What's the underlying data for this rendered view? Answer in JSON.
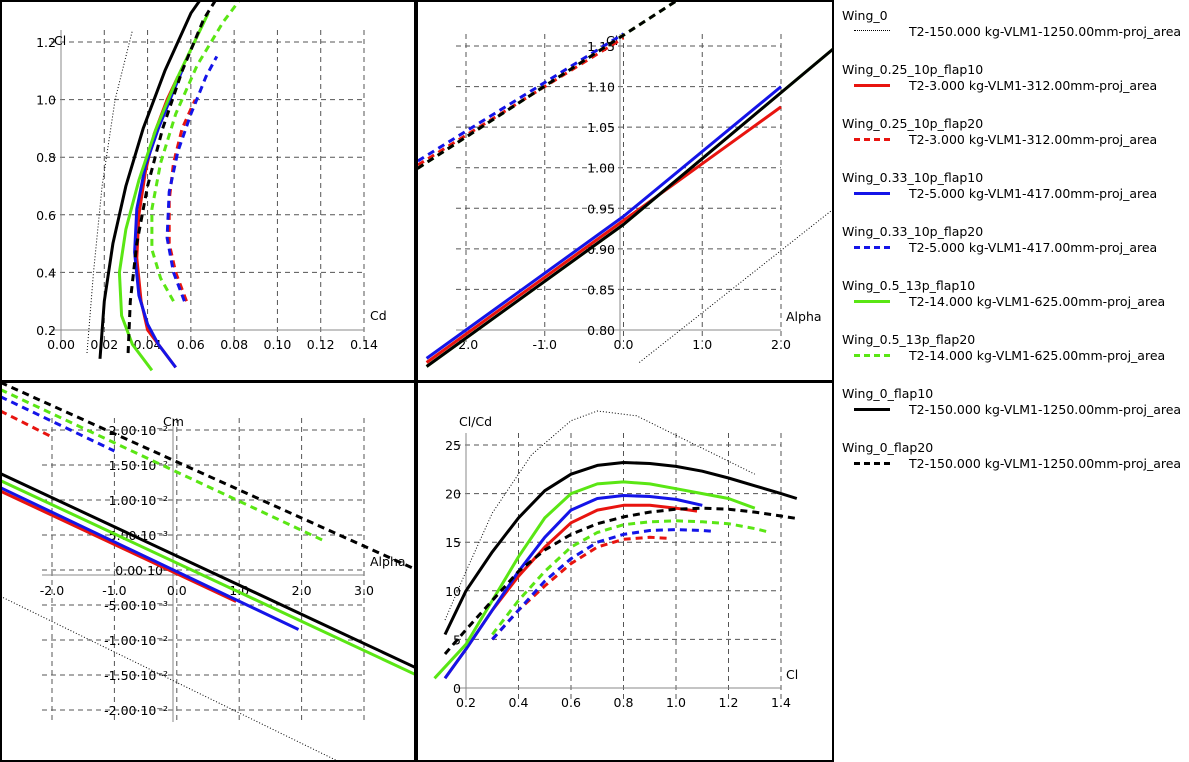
{
  "legend": {
    "entries": [
      {
        "name": "Wing_0",
        "desc": "T2-150.000 kg-VLM1-1250.00mm-proj_area",
        "color": "#000000",
        "style": "dotted"
      },
      {
        "name": "Wing_0.25_10p_flap10",
        "desc": "T2-3.000 kg-VLM1-312.00mm-proj_area",
        "color": "#e8140f",
        "style": "solid"
      },
      {
        "name": "Wing_0.25_10p_flap20",
        "desc": "T2-3.000 kg-VLM1-312.00mm-proj_area",
        "color": "#e8140f",
        "style": "dashed"
      },
      {
        "name": "Wing_0.33_10p_flap10",
        "desc": "T2-5.000 kg-VLM1-417.00mm-proj_area",
        "color": "#1414e8",
        "style": "solid"
      },
      {
        "name": "Wing_0.33_10p_flap20",
        "desc": "T2-5.000 kg-VLM1-417.00mm-proj_area",
        "color": "#1414e8",
        "style": "dashed"
      },
      {
        "name": "Wing_0.5_13p_flap10",
        "desc": "T2-14.000 kg-VLM1-625.00mm-proj_area",
        "color": "#5ae614",
        "style": "solid"
      },
      {
        "name": "Wing_0.5_13p_flap20",
        "desc": "T2-14.000 kg-VLM1-625.00mm-proj_area",
        "color": "#5ae614",
        "style": "dashed"
      },
      {
        "name": "Wing_0_flap10",
        "desc": "T2-150.000 kg-VLM1-1250.00mm-proj_area",
        "color": "#000000",
        "style": "solid"
      },
      {
        "name": "Wing_0_flap20",
        "desc": "T2-150.000 kg-VLM1-1250.00mm-proj_area",
        "color": "#000000",
        "style": "dashed"
      }
    ]
  },
  "chart_data": [
    {
      "type": "line",
      "xlabel": "Cd",
      "ylabel": "Cl",
      "xlim": [
        0.0,
        0.14
      ],
      "ylim": [
        0.07,
        1.35
      ],
      "xticks": [
        0.0,
        0.02,
        0.04,
        0.06,
        0.08,
        0.1,
        0.12,
        0.14
      ],
      "xtick_labels": [
        "0.00",
        "0.02",
        "0.04",
        "0.06",
        "0.08",
        "0.10",
        "0.12",
        "0.14"
      ],
      "yticks": [
        0.2,
        0.4,
        0.6,
        0.8,
        1.0,
        1.2
      ],
      "ytick_labels": [
        "0.2",
        "0.4",
        "0.6",
        "0.8",
        "1.0",
        "1.2"
      ],
      "grid": true,
      "series": [
        {
          "name": "Wing_0",
          "x": [
            0.012,
            0.015,
            0.019,
            0.025,
            0.033
          ],
          "y": [
            0.12,
            0.4,
            0.7,
            1.0,
            1.24
          ]
        },
        {
          "name": "Wing_0.25_10p_flap10",
          "x": [
            0.053,
            0.046,
            0.04,
            0.037,
            0.035,
            0.036,
            0.039,
            0.043,
            0.049,
            0.054
          ],
          "y": [
            0.07,
            0.14,
            0.2,
            0.3,
            0.45,
            0.6,
            0.75,
            0.88,
            1.0,
            1.08
          ]
        },
        {
          "name": "Wing_0.25_10p_flap20",
          "x": [
            0.058,
            0.053,
            0.05,
            0.05,
            0.052,
            0.056,
            0.062
          ],
          "y": [
            0.3,
            0.4,
            0.5,
            0.65,
            0.78,
            0.9,
            1.0
          ]
        },
        {
          "name": "Wing_0.33_10p_flap10",
          "x": [
            0.053,
            0.045,
            0.04,
            0.036,
            0.034,
            0.035,
            0.039,
            0.045,
            0.052,
            0.057
          ],
          "y": [
            0.07,
            0.15,
            0.22,
            0.32,
            0.47,
            0.62,
            0.77,
            0.9,
            1.03,
            1.12
          ]
        },
        {
          "name": "Wing_0.33_10p_flap20",
          "x": [
            0.057,
            0.052,
            0.049,
            0.05,
            0.054,
            0.06,
            0.067,
            0.072
          ],
          "y": [
            0.3,
            0.4,
            0.52,
            0.68,
            0.82,
            0.95,
            1.08,
            1.15
          ]
        },
        {
          "name": "Wing_0.5_13p_flap10",
          "x": [
            0.042,
            0.033,
            0.028,
            0.027,
            0.03,
            0.036,
            0.044,
            0.054,
            0.068
          ],
          "y": [
            0.06,
            0.15,
            0.25,
            0.4,
            0.55,
            0.72,
            0.9,
            1.08,
            1.3
          ]
        },
        {
          "name": "Wing_0.5_13p_flap20",
          "x": [
            0.052,
            0.046,
            0.042,
            0.042,
            0.046,
            0.053,
            0.063,
            0.075,
            0.085
          ],
          "y": [
            0.3,
            0.38,
            0.48,
            0.62,
            0.78,
            0.95,
            1.12,
            1.27,
            1.37
          ]
        },
        {
          "name": "Wing_0_flap10",
          "x": [
            0.018,
            0.02,
            0.024,
            0.03,
            0.038,
            0.048,
            0.06,
            0.074
          ],
          "y": [
            0.1,
            0.3,
            0.5,
            0.7,
            0.9,
            1.1,
            1.3,
            1.45
          ]
        },
        {
          "name": "Wing_0_flap20",
          "x": [
            0.031,
            0.032,
            0.035,
            0.04,
            0.047,
            0.056,
            0.066,
            0.076,
            0.085
          ],
          "y": [
            0.12,
            0.3,
            0.5,
            0.7,
            0.9,
            1.1,
            1.28,
            1.4,
            1.47
          ]
        }
      ]
    },
    {
      "type": "line",
      "xlabel": "Alpha",
      "ylabel": "Cl",
      "xlim": [
        -3.05,
        3.2
      ],
      "ylim": [
        0.76,
        1.2
      ],
      "xticks": [
        -2.0,
        -1.0,
        0.0,
        1.0,
        2.0
      ],
      "xtick_labels": [
        "-2.0",
        "-1.0",
        "0.0",
        "1.0",
        "2.0"
      ],
      "yticks": [
        0.8,
        0.85,
        0.9,
        0.95,
        1.0,
        1.05,
        1.1,
        1.15
      ],
      "ytick_labels": [
        "0.80",
        "0.85",
        "0.90",
        "0.95",
        "1.00",
        "1.05",
        "1.10",
        "1.15"
      ],
      "grid": true,
      "series": [
        {
          "name": "Wing_0",
          "x": [
            0.2,
            3.2
          ],
          "y": [
            0.76,
            0.99
          ]
        },
        {
          "name": "Wing_0.25_10p_flap10",
          "x": [
            -2.5,
            0.0,
            2.0
          ],
          "y": [
            0.76,
            0.935,
            1.075
          ]
        },
        {
          "name": "Wing_0.25_10p_flap20",
          "x": [
            -3.0,
            0.0
          ],
          "y": [
            0.98,
            1.16
          ]
        },
        {
          "name": "Wing_0.33_10p_flap10",
          "x": [
            -2.5,
            0.0,
            2.0
          ],
          "y": [
            0.765,
            0.94,
            1.1
          ]
        },
        {
          "name": "Wing_0.33_10p_flap20",
          "x": [
            -3.0,
            0.0
          ],
          "y": [
            0.985,
            1.165
          ]
        },
        {
          "name": "Wing_0.5_13p_flap10",
          "x": [
            -2.5,
            0.0,
            3.2
          ],
          "y": [
            0.755,
            0.93,
            1.19
          ]
        },
        {
          "name": "Wing_0.5_13p_flap20",
          "x": [
            -3.0,
            0.9
          ],
          "y": [
            0.975,
            1.22
          ]
        },
        {
          "name": "Wing_0_flap10",
          "x": [
            -2.5,
            0.0,
            3.2
          ],
          "y": [
            0.755,
            0.93,
            1.19
          ]
        },
        {
          "name": "Wing_0_flap20",
          "x": [
            -3.0,
            0.9
          ],
          "y": [
            0.975,
            1.22
          ]
        }
      ]
    },
    {
      "type": "line",
      "xlabel": "Alpha",
      "ylabel": "Cm",
      "xlim": [
        -2.75,
        3.9
      ],
      "ylim": [
        -0.027,
        0.031
      ],
      "xticks": [
        -2.0,
        -1.0,
        0.0,
        1.0,
        2.0,
        3.0
      ],
      "xtick_labels": [
        "-2.0",
        "-1.0",
        "0.0",
        "1.0",
        "2.0",
        "3.0"
      ],
      "yticks": [
        0.02,
        0.015,
        0.01,
        0.005,
        0.0,
        -0.005,
        -0.01,
        -0.015,
        -0.02
      ],
      "ytick_labels": [
        "2.00·10⁻²",
        "1.50·10⁻²",
        "1.00·10⁻²",
        "5.00·10⁻³",
        "0.00·10⁰",
        "-5.00·10⁻³",
        "-1.00·10⁻²",
        "-1.50·10⁻²",
        "-2.00·10⁻²"
      ],
      "grid": true,
      "series": [
        {
          "name": "Wing_0",
          "x": [
            -3.0,
            3.2
          ],
          "y": [
            -0.003,
            -0.03
          ]
        },
        {
          "name": "Wing_0.25_10p_flap10",
          "x": [
            -3.0,
            0.95
          ],
          "y": [
            0.012,
            -0.0045
          ]
        },
        {
          "name": "Wing_0.25_10p_flap20",
          "x": [
            -3.0,
            -2.0
          ],
          "y": [
            0.0235,
            0.019
          ]
        },
        {
          "name": "Wing_0.33_10p_flap10",
          "x": [
            -3.0,
            1.95
          ],
          "y": [
            0.0125,
            -0.0085
          ]
        },
        {
          "name": "Wing_0.33_10p_flap20",
          "x": [
            -3.0,
            -1.0
          ],
          "y": [
            0.0255,
            0.017
          ]
        },
        {
          "name": "Wing_0.5_13p_flap10",
          "x": [
            -3.0,
            4.2
          ],
          "y": [
            0.0135,
            -0.0165
          ]
        },
        {
          "name": "Wing_0.5_13p_flap20",
          "x": [
            -3.0,
            2.4
          ],
          "y": [
            0.0265,
            0.004
          ]
        },
        {
          "name": "Wing_0_flap10",
          "x": [
            -3.0,
            4.2
          ],
          "y": [
            0.0145,
            -0.0155
          ]
        },
        {
          "name": "Wing_0_flap20",
          "x": [
            -3.0,
            3.85
          ],
          "y": [
            0.0275,
            -0.0
          ]
        }
      ]
    },
    {
      "type": "line",
      "xlabel": "Cl",
      "ylabel": "Cl/Cd",
      "xlim": [
        0.08,
        1.5
      ],
      "ylim": [
        -1.0,
        27.0
      ],
      "xticks": [
        0.2,
        0.4,
        0.6,
        0.8,
        1.0,
        1.2,
        1.4
      ],
      "xtick_labels": [
        "0.2",
        "0.4",
        "0.6",
        "0.8",
        "1.0",
        "1.2",
        "1.4"
      ],
      "yticks": [
        0,
        5,
        10,
        15,
        20,
        25
      ],
      "ytick_labels": [
        "0",
        "5",
        "10",
        "15",
        "20",
        "25"
      ],
      "grid": true,
      "series": [
        {
          "name": "Wing_0",
          "x": [
            0.12,
            0.2,
            0.3,
            0.45,
            0.6,
            0.7,
            0.85,
            1.0,
            1.15,
            1.3
          ],
          "y": [
            7,
            12,
            18,
            24,
            27.5,
            28.5,
            28,
            26,
            24,
            22
          ]
        },
        {
          "name": "Wing_0.25_10p_flap10",
          "x": [
            0.12,
            0.2,
            0.3,
            0.4,
            0.5,
            0.6,
            0.7,
            0.8,
            0.9,
            1.0,
            1.08
          ],
          "y": [
            1,
            4,
            8,
            11.5,
            14.5,
            17,
            18.3,
            18.8,
            18.8,
            18.5,
            18.2
          ]
        },
        {
          "name": "Wing_0.25_10p_flap20",
          "x": [
            0.3,
            0.4,
            0.5,
            0.6,
            0.7,
            0.8,
            0.9,
            0.97
          ],
          "y": [
            5,
            8,
            10.5,
            12.8,
            14.5,
            15.3,
            15.5,
            15.4
          ]
        },
        {
          "name": "Wing_0.33_10p_flap10",
          "x": [
            0.12,
            0.2,
            0.3,
            0.4,
            0.5,
            0.6,
            0.7,
            0.8,
            0.9,
            1.0,
            1.1
          ],
          "y": [
            1,
            4,
            8,
            12,
            15.5,
            18.3,
            19.5,
            19.8,
            19.7,
            19.4,
            18.8
          ]
        },
        {
          "name": "Wing_0.33_10p_flap20",
          "x": [
            0.3,
            0.4,
            0.5,
            0.6,
            0.7,
            0.8,
            0.9,
            1.0,
            1.1,
            1.15
          ],
          "y": [
            5,
            8,
            11,
            13.3,
            15,
            15.8,
            16.2,
            16.3,
            16.2,
            16.1
          ]
        },
        {
          "name": "Wing_0.5_13p_flap10",
          "x": [
            0.08,
            0.2,
            0.3,
            0.4,
            0.5,
            0.6,
            0.7,
            0.8,
            0.9,
            1.0,
            1.1,
            1.2,
            1.3
          ],
          "y": [
            1,
            4.5,
            9,
            13.5,
            17.5,
            20,
            21,
            21.2,
            21,
            20.5,
            20,
            19.5,
            18.5
          ]
        },
        {
          "name": "Wing_0.5_13p_flap20",
          "x": [
            0.3,
            0.4,
            0.5,
            0.6,
            0.7,
            0.8,
            0.9,
            1.0,
            1.1,
            1.2,
            1.3,
            1.36
          ],
          "y": [
            5.5,
            9,
            12,
            14.5,
            16,
            16.8,
            17.1,
            17.2,
            17.1,
            16.9,
            16.4,
            16
          ]
        },
        {
          "name": "Wing_0_flap10",
          "x": [
            0.12,
            0.2,
            0.3,
            0.4,
            0.5,
            0.6,
            0.7,
            0.8,
            0.9,
            1.0,
            1.1,
            1.2,
            1.3,
            1.4,
            1.46
          ],
          "y": [
            5.5,
            10,
            14,
            17.5,
            20.3,
            22,
            22.9,
            23.2,
            23.1,
            22.8,
            22.3,
            21.6,
            20.8,
            20,
            19.5
          ]
        },
        {
          "name": "Wing_0_flap20",
          "x": [
            0.12,
            0.2,
            0.3,
            0.4,
            0.5,
            0.6,
            0.7,
            0.8,
            0.9,
            1.0,
            1.1,
            1.2,
            1.3,
            1.4,
            1.47
          ],
          "y": [
            3.5,
            6,
            9,
            12,
            14.2,
            15.8,
            16.9,
            17.6,
            18.1,
            18.4,
            18.5,
            18.4,
            18.1,
            17.7,
            17.4
          ]
        }
      ]
    }
  ]
}
